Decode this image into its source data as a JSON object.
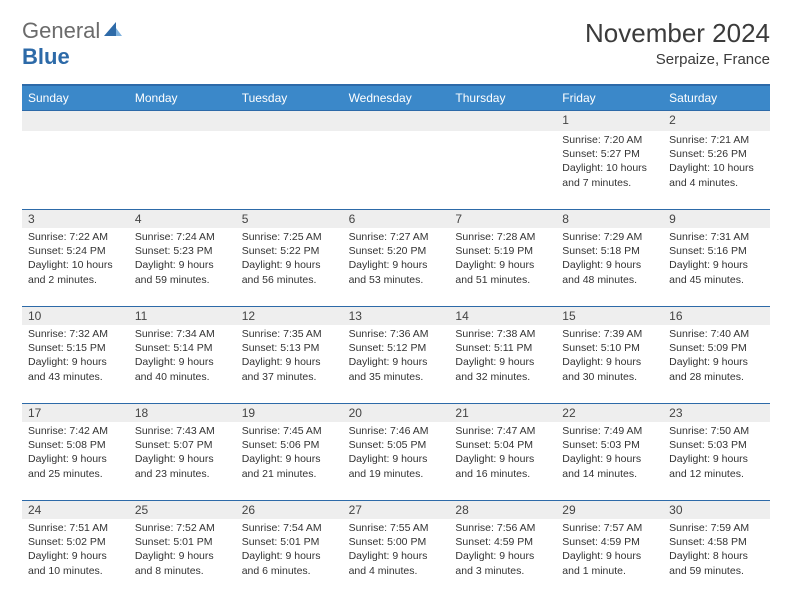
{
  "brand": {
    "general": "General",
    "blue": "Blue"
  },
  "title": "November 2024",
  "location": "Serpaize, France",
  "colors": {
    "header_bg": "#3b88c9",
    "border": "#2d6aa8",
    "daynum_bg": "#eeeeee",
    "text": "#333333",
    "logo_gray": "#6b6b6b",
    "logo_blue": "#2d6aa8"
  },
  "weekdays": [
    "Sunday",
    "Monday",
    "Tuesday",
    "Wednesday",
    "Thursday",
    "Friday",
    "Saturday"
  ],
  "weeks": [
    [
      {
        "blank": true
      },
      {
        "blank": true
      },
      {
        "blank": true
      },
      {
        "blank": true
      },
      {
        "blank": true
      },
      {
        "n": "1",
        "sr": "Sunrise: 7:20 AM",
        "ss": "Sunset: 5:27 PM",
        "dl": "Daylight: 10 hours and 7 minutes."
      },
      {
        "n": "2",
        "sr": "Sunrise: 7:21 AM",
        "ss": "Sunset: 5:26 PM",
        "dl": "Daylight: 10 hours and 4 minutes."
      }
    ],
    [
      {
        "n": "3",
        "sr": "Sunrise: 7:22 AM",
        "ss": "Sunset: 5:24 PM",
        "dl": "Daylight: 10 hours and 2 minutes."
      },
      {
        "n": "4",
        "sr": "Sunrise: 7:24 AM",
        "ss": "Sunset: 5:23 PM",
        "dl": "Daylight: 9 hours and 59 minutes."
      },
      {
        "n": "5",
        "sr": "Sunrise: 7:25 AM",
        "ss": "Sunset: 5:22 PM",
        "dl": "Daylight: 9 hours and 56 minutes."
      },
      {
        "n": "6",
        "sr": "Sunrise: 7:27 AM",
        "ss": "Sunset: 5:20 PM",
        "dl": "Daylight: 9 hours and 53 minutes."
      },
      {
        "n": "7",
        "sr": "Sunrise: 7:28 AM",
        "ss": "Sunset: 5:19 PM",
        "dl": "Daylight: 9 hours and 51 minutes."
      },
      {
        "n": "8",
        "sr": "Sunrise: 7:29 AM",
        "ss": "Sunset: 5:18 PM",
        "dl": "Daylight: 9 hours and 48 minutes."
      },
      {
        "n": "9",
        "sr": "Sunrise: 7:31 AM",
        "ss": "Sunset: 5:16 PM",
        "dl": "Daylight: 9 hours and 45 minutes."
      }
    ],
    [
      {
        "n": "10",
        "sr": "Sunrise: 7:32 AM",
        "ss": "Sunset: 5:15 PM",
        "dl": "Daylight: 9 hours and 43 minutes."
      },
      {
        "n": "11",
        "sr": "Sunrise: 7:34 AM",
        "ss": "Sunset: 5:14 PM",
        "dl": "Daylight: 9 hours and 40 minutes."
      },
      {
        "n": "12",
        "sr": "Sunrise: 7:35 AM",
        "ss": "Sunset: 5:13 PM",
        "dl": "Daylight: 9 hours and 37 minutes."
      },
      {
        "n": "13",
        "sr": "Sunrise: 7:36 AM",
        "ss": "Sunset: 5:12 PM",
        "dl": "Daylight: 9 hours and 35 minutes."
      },
      {
        "n": "14",
        "sr": "Sunrise: 7:38 AM",
        "ss": "Sunset: 5:11 PM",
        "dl": "Daylight: 9 hours and 32 minutes."
      },
      {
        "n": "15",
        "sr": "Sunrise: 7:39 AM",
        "ss": "Sunset: 5:10 PM",
        "dl": "Daylight: 9 hours and 30 minutes."
      },
      {
        "n": "16",
        "sr": "Sunrise: 7:40 AM",
        "ss": "Sunset: 5:09 PM",
        "dl": "Daylight: 9 hours and 28 minutes."
      }
    ],
    [
      {
        "n": "17",
        "sr": "Sunrise: 7:42 AM",
        "ss": "Sunset: 5:08 PM",
        "dl": "Daylight: 9 hours and 25 minutes."
      },
      {
        "n": "18",
        "sr": "Sunrise: 7:43 AM",
        "ss": "Sunset: 5:07 PM",
        "dl": "Daylight: 9 hours and 23 minutes."
      },
      {
        "n": "19",
        "sr": "Sunrise: 7:45 AM",
        "ss": "Sunset: 5:06 PM",
        "dl": "Daylight: 9 hours and 21 minutes."
      },
      {
        "n": "20",
        "sr": "Sunrise: 7:46 AM",
        "ss": "Sunset: 5:05 PM",
        "dl": "Daylight: 9 hours and 19 minutes."
      },
      {
        "n": "21",
        "sr": "Sunrise: 7:47 AM",
        "ss": "Sunset: 5:04 PM",
        "dl": "Daylight: 9 hours and 16 minutes."
      },
      {
        "n": "22",
        "sr": "Sunrise: 7:49 AM",
        "ss": "Sunset: 5:03 PM",
        "dl": "Daylight: 9 hours and 14 minutes."
      },
      {
        "n": "23",
        "sr": "Sunrise: 7:50 AM",
        "ss": "Sunset: 5:03 PM",
        "dl": "Daylight: 9 hours and 12 minutes."
      }
    ],
    [
      {
        "n": "24",
        "sr": "Sunrise: 7:51 AM",
        "ss": "Sunset: 5:02 PM",
        "dl": "Daylight: 9 hours and 10 minutes."
      },
      {
        "n": "25",
        "sr": "Sunrise: 7:52 AM",
        "ss": "Sunset: 5:01 PM",
        "dl": "Daylight: 9 hours and 8 minutes."
      },
      {
        "n": "26",
        "sr": "Sunrise: 7:54 AM",
        "ss": "Sunset: 5:01 PM",
        "dl": "Daylight: 9 hours and 6 minutes."
      },
      {
        "n": "27",
        "sr": "Sunrise: 7:55 AM",
        "ss": "Sunset: 5:00 PM",
        "dl": "Daylight: 9 hours and 4 minutes."
      },
      {
        "n": "28",
        "sr": "Sunrise: 7:56 AM",
        "ss": "Sunset: 4:59 PM",
        "dl": "Daylight: 9 hours and 3 minutes."
      },
      {
        "n": "29",
        "sr": "Sunrise: 7:57 AM",
        "ss": "Sunset: 4:59 PM",
        "dl": "Daylight: 9 hours and 1 minute."
      },
      {
        "n": "30",
        "sr": "Sunrise: 7:59 AM",
        "ss": "Sunset: 4:58 PM",
        "dl": "Daylight: 8 hours and 59 minutes."
      }
    ]
  ]
}
